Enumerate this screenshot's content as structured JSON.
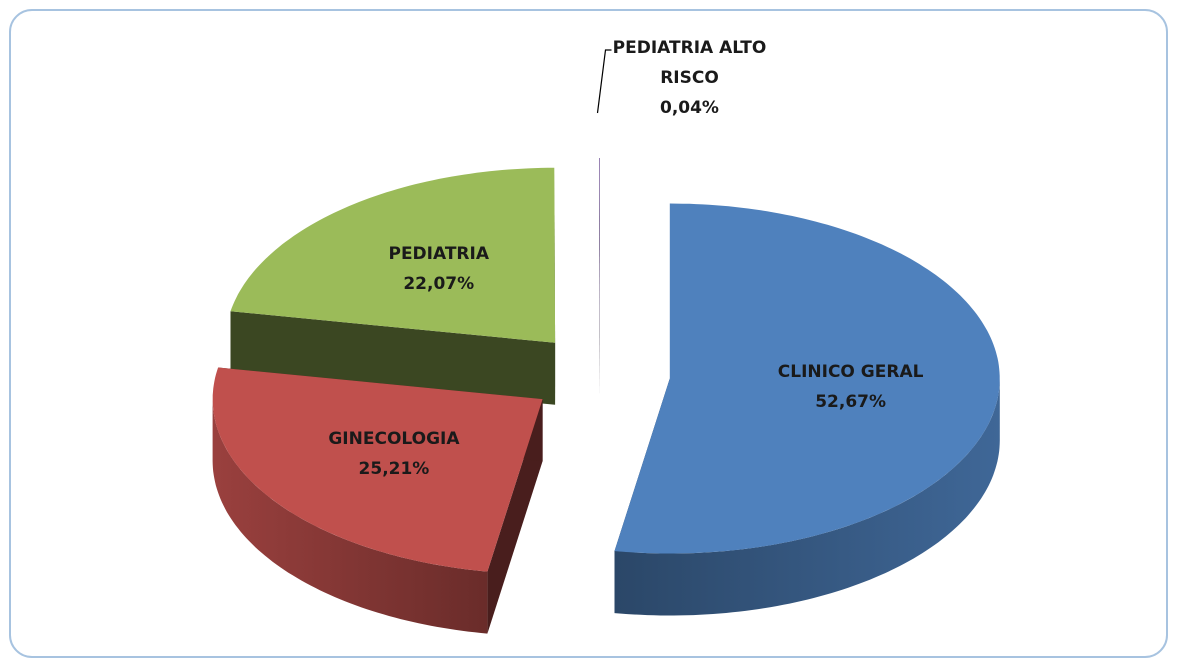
{
  "chart_data": {
    "type": "pie3d",
    "categories": [
      "CLINICO GERAL",
      "GINECOLOGIA",
      "PEDIATRIA",
      "PEDIATRIA ALTO RISCO"
    ],
    "values": [
      52.67,
      25.21,
      22.07,
      0.04
    ],
    "value_labels": [
      "52,67%",
      "25,21%",
      "22,07%",
      "0,04%"
    ],
    "colors": [
      "#4f81bd",
      "#c0504d",
      "#9bbb59",
      "#8064a2"
    ]
  }
}
